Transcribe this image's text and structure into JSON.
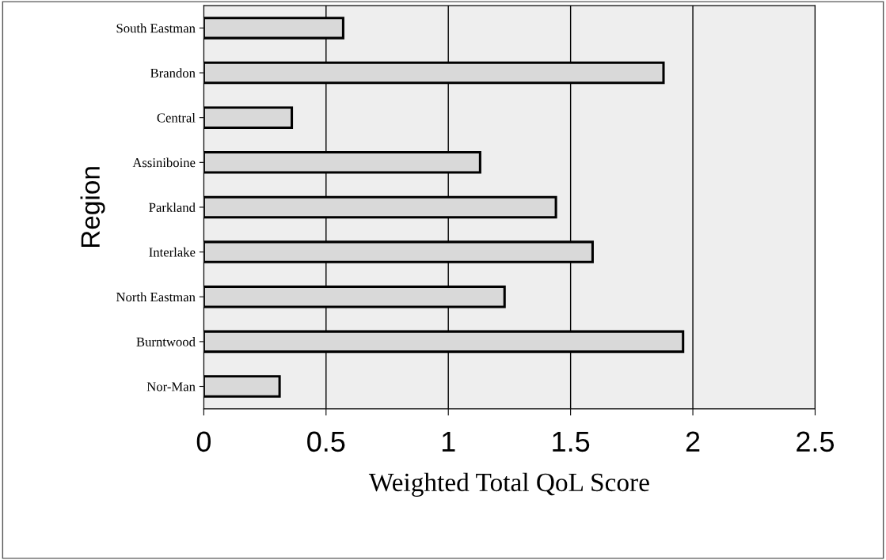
{
  "chart_data": {
    "type": "bar",
    "orientation": "horizontal",
    "xlabel": "Weighted Total QoL Score",
    "ylabel": "Region",
    "categories": [
      "South Eastman",
      "Brandon",
      "Central",
      "Assiniboine",
      "Parkland",
      "Interlake",
      "North Eastman",
      "Burntwood",
      "Nor-Man"
    ],
    "values": [
      0.57,
      1.88,
      0.36,
      1.13,
      1.44,
      1.59,
      1.23,
      1.96,
      0.31
    ],
    "color": "#d9d9d9",
    "xlim": [
      0,
      2.5
    ],
    "xticks": [
      0,
      0.5,
      1,
      1.5,
      2,
      2.5
    ],
    "grid": "x",
    "legend": false
  }
}
